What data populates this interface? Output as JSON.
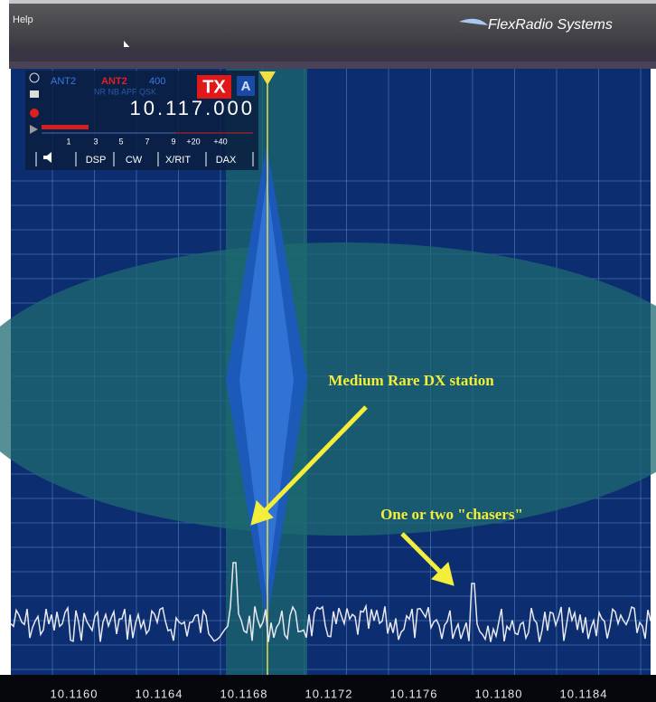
{
  "menu": {
    "help": "Help",
    "brand": "FlexRadio Systems"
  },
  "slice": {
    "ant_rx": "ANT2",
    "ant_tx": "ANT2",
    "bandwidth": "400",
    "flags": "NR NB APF QSK",
    "tx": "TX",
    "letter": "A",
    "frequency": "10.117.000",
    "meter_scale": [
      "1",
      "3",
      "5",
      "7",
      "9",
      "+20",
      "+40"
    ],
    "buttons": [
      "DSP",
      "CW",
      "X/RIT",
      "DAX"
    ]
  },
  "annotations": [
    "Medium Rare DX station",
    "One or two \"chasers\""
  ],
  "frequency_axis": [
    "10.1160",
    "10.1164",
    "10.1168",
    "10.1172",
    "10.1176",
    "10.1180",
    "10.1184"
  ]
}
